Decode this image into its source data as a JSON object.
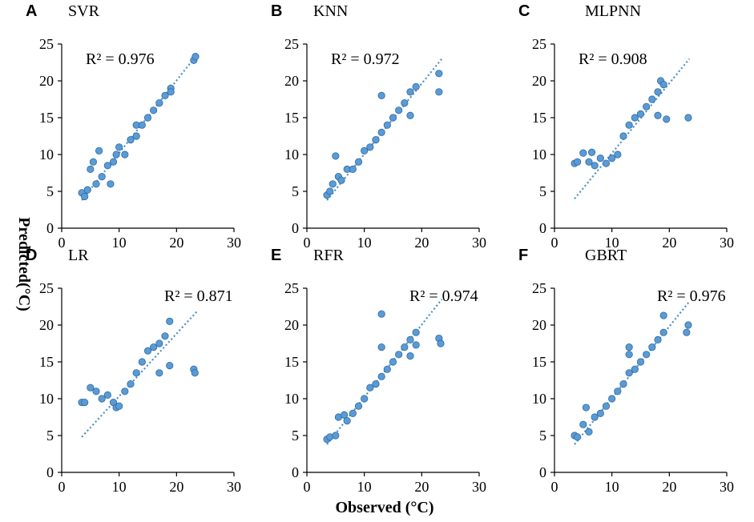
{
  "figure": {
    "xlabel": "Observed (°C)",
    "ylabel": "Predicted(°C)",
    "point_color": "#5b9bd5",
    "point_edge": "#2e6aa3",
    "trend_color": "#4a90c8"
  },
  "chart_data": [
    {
      "type": "scatter",
      "panel": "A",
      "title": "SVR",
      "r2_text": "R² = 0.976",
      "r2_position": "top-left",
      "xlim": [
        0,
        30
      ],
      "ylim": [
        0,
        25
      ],
      "xticks": [
        0,
        10,
        20,
        30
      ],
      "yticks": [
        0,
        5,
        10,
        15,
        20,
        25
      ],
      "trendline": [
        [
          3.5,
          3.8
        ],
        [
          23.5,
          23.5
        ]
      ],
      "points": [
        [
          3.5,
          4.8
        ],
        [
          4.0,
          4.3
        ],
        [
          4.5,
          5.2
        ],
        [
          5.0,
          8.0
        ],
        [
          5.5,
          9.0
        ],
        [
          6.0,
          6.0
        ],
        [
          6.5,
          10.5
        ],
        [
          7.0,
          7.0
        ],
        [
          8.0,
          8.5
        ],
        [
          8.5,
          6.0
        ],
        [
          9.0,
          9.0
        ],
        [
          9.5,
          10.0
        ],
        [
          10.0,
          11.0
        ],
        [
          11.0,
          10.0
        ],
        [
          12.0,
          12.0
        ],
        [
          13.0,
          12.5
        ],
        [
          13.0,
          14.0
        ],
        [
          14.0,
          14.0
        ],
        [
          15.0,
          15.0
        ],
        [
          16.0,
          16.0
        ],
        [
          17.0,
          17.0
        ],
        [
          18.0,
          18.0
        ],
        [
          19.0,
          19.0
        ],
        [
          19.0,
          18.5
        ],
        [
          23.0,
          22.8
        ],
        [
          23.3,
          23.3
        ]
      ]
    },
    {
      "type": "scatter",
      "panel": "B",
      "title": "KNN",
      "r2_text": "R² = 0.972",
      "r2_position": "top-left",
      "xlim": [
        0,
        30
      ],
      "ylim": [
        0,
        25
      ],
      "xticks": [
        0,
        10,
        20,
        30
      ],
      "yticks": [
        0,
        5,
        10,
        15,
        20,
        25
      ],
      "trendline": [
        [
          3.5,
          3.8
        ],
        [
          23.5,
          23.0
        ]
      ],
      "points": [
        [
          3.5,
          4.5
        ],
        [
          4.0,
          5.0
        ],
        [
          4.5,
          6.0
        ],
        [
          5.0,
          9.8
        ],
        [
          5.5,
          7.0
        ],
        [
          6.0,
          6.5
        ],
        [
          7.0,
          8.0
        ],
        [
          8.0,
          8.0
        ],
        [
          9.0,
          9.0
        ],
        [
          10.0,
          10.5
        ],
        [
          11.0,
          11.0
        ],
        [
          12.0,
          12.0
        ],
        [
          13.0,
          18.0
        ],
        [
          13.0,
          13.0
        ],
        [
          14.0,
          14.0
        ],
        [
          15.0,
          15.0
        ],
        [
          16.0,
          16.0
        ],
        [
          17.0,
          17.0
        ],
        [
          18.0,
          18.5
        ],
        [
          19.0,
          19.2
        ],
        [
          18.0,
          15.3
        ],
        [
          23.0,
          21.0
        ],
        [
          23.0,
          18.5
        ]
      ]
    },
    {
      "type": "scatter",
      "panel": "C",
      "title": "MLPNN",
      "r2_text": "R² = 0.908",
      "r2_position": "top-left",
      "xlim": [
        0,
        30
      ],
      "ylim": [
        0,
        25
      ],
      "xticks": [
        0,
        10,
        20,
        30
      ],
      "yticks": [
        0,
        5,
        10,
        15,
        20,
        25
      ],
      "trendline": [
        [
          3.5,
          4.0
        ],
        [
          23.5,
          23.0
        ]
      ],
      "points": [
        [
          3.5,
          8.8
        ],
        [
          4.0,
          9.0
        ],
        [
          5.0,
          10.2
        ],
        [
          6.0,
          9.0
        ],
        [
          6.5,
          10.3
        ],
        [
          7.0,
          8.5
        ],
        [
          8.0,
          9.5
        ],
        [
          9.0,
          8.8
        ],
        [
          10.0,
          9.5
        ],
        [
          11.0,
          10.0
        ],
        [
          12.0,
          12.5
        ],
        [
          13.0,
          14.0
        ],
        [
          14.0,
          15.0
        ],
        [
          15.0,
          15.5
        ],
        [
          16.0,
          16.5
        ],
        [
          17.0,
          17.5
        ],
        [
          18.0,
          18.5
        ],
        [
          18.5,
          20.0
        ],
        [
          19.0,
          19.5
        ],
        [
          18.0,
          15.3
        ],
        [
          19.5,
          14.8
        ],
        [
          23.3,
          15.0
        ]
      ]
    },
    {
      "type": "scatter",
      "panel": "D",
      "title": "LR",
      "r2_text": "R² = 0.871",
      "r2_position": "top-right",
      "xlim": [
        0,
        30
      ],
      "ylim": [
        0,
        25
      ],
      "xticks": [
        0,
        10,
        20,
        30
      ],
      "yticks": [
        0,
        5,
        10,
        15,
        20,
        25
      ],
      "trendline": [
        [
          3.5,
          4.8
        ],
        [
          23.5,
          21.8
        ]
      ],
      "points": [
        [
          3.5,
          9.5
        ],
        [
          4.0,
          9.5
        ],
        [
          5.0,
          11.5
        ],
        [
          6.0,
          11.0
        ],
        [
          7.0,
          10.0
        ],
        [
          8.0,
          10.5
        ],
        [
          9.0,
          9.5
        ],
        [
          9.5,
          8.8
        ],
        [
          10.0,
          9.0
        ],
        [
          11.0,
          11.0
        ],
        [
          12.0,
          12.0
        ],
        [
          13.0,
          13.5
        ],
        [
          14.0,
          15.0
        ],
        [
          15.0,
          16.5
        ],
        [
          16.0,
          17.0
        ],
        [
          17.0,
          17.5
        ],
        [
          18.0,
          18.5
        ],
        [
          18.8,
          20.5
        ],
        [
          17.0,
          13.5
        ],
        [
          18.8,
          14.5
        ],
        [
          23.0,
          14.0
        ],
        [
          23.2,
          13.5
        ]
      ]
    },
    {
      "type": "scatter",
      "panel": "E",
      "title": "RFR",
      "r2_text": "R² = 0.974",
      "r2_position": "top-right",
      "xlim": [
        0,
        30
      ],
      "ylim": [
        0,
        25
      ],
      "xticks": [
        0,
        10,
        20,
        30
      ],
      "yticks": [
        0,
        5,
        10,
        15,
        20,
        25
      ],
      "trendline": [
        [
          3.5,
          3.8
        ],
        [
          23.5,
          23.5
        ]
      ],
      "points": [
        [
          3.5,
          4.5
        ],
        [
          4.0,
          4.8
        ],
        [
          5.0,
          5.0
        ],
        [
          5.5,
          7.5
        ],
        [
          6.5,
          7.8
        ],
        [
          7.0,
          7.0
        ],
        [
          8.0,
          8.0
        ],
        [
          9.0,
          9.0
        ],
        [
          10.0,
          10.0
        ],
        [
          11.0,
          11.5
        ],
        [
          12.0,
          12.0
        ],
        [
          13.0,
          21.5
        ],
        [
          13.0,
          17.0
        ],
        [
          13.0,
          13.0
        ],
        [
          14.0,
          14.0
        ],
        [
          15.0,
          15.0
        ],
        [
          16.0,
          16.0
        ],
        [
          17.0,
          17.0
        ],
        [
          18.0,
          18.0
        ],
        [
          19.0,
          19.0
        ],
        [
          18.0,
          15.8
        ],
        [
          19.0,
          17.3
        ],
        [
          23.0,
          18.2
        ],
        [
          23.3,
          17.5
        ]
      ]
    },
    {
      "type": "scatter",
      "panel": "F",
      "title": "GBRT",
      "r2_text": "R² = 0.976",
      "r2_position": "top-right",
      "xlim": [
        0,
        30
      ],
      "ylim": [
        0,
        25
      ],
      "xticks": [
        0,
        10,
        20,
        30
      ],
      "yticks": [
        0,
        5,
        10,
        15,
        20,
        25
      ],
      "trendline": [
        [
          3.5,
          3.8
        ],
        [
          23.5,
          23.2
        ]
      ],
      "points": [
        [
          3.5,
          5.0
        ],
        [
          4.0,
          4.8
        ],
        [
          5.0,
          6.5
        ],
        [
          5.5,
          8.8
        ],
        [
          6.0,
          5.5
        ],
        [
          7.0,
          7.5
        ],
        [
          8.0,
          8.0
        ],
        [
          9.0,
          9.0
        ],
        [
          10.0,
          10.0
        ],
        [
          11.0,
          11.0
        ],
        [
          12.0,
          12.0
        ],
        [
          13.0,
          17.0
        ],
        [
          13.0,
          16.0
        ],
        [
          13.0,
          13.5
        ],
        [
          14.0,
          14.0
        ],
        [
          15.0,
          15.0
        ],
        [
          16.0,
          16.0
        ],
        [
          17.0,
          17.0
        ],
        [
          18.0,
          18.0
        ],
        [
          19.0,
          21.3
        ],
        [
          19.0,
          19.0
        ],
        [
          23.0,
          19.0
        ],
        [
          23.3,
          20.0
        ]
      ]
    }
  ]
}
